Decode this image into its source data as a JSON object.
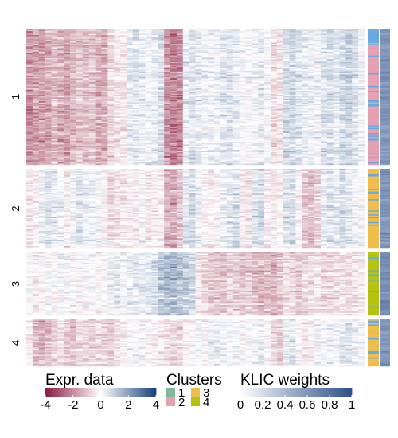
{
  "chart_data": {
    "type": "heatmap",
    "title": "",
    "xlabel": "",
    "ylabel": "",
    "row_groups": [
      {
        "label": "1",
        "cluster": "2",
        "weight": 0.6
      },
      {
        "label": "2",
        "cluster": "3",
        "weight": 0.6
      },
      {
        "label": "3",
        "cluster": "4",
        "weight": 0.65
      },
      {
        "label": "4",
        "cluster": "3",
        "weight": 0.6
      }
    ],
    "heatmap_column_profiles": [
      [
        -1.6,
        -0.4,
        0.0,
        -0.2
      ],
      [
        -1.4,
        -0.2,
        -0.3,
        -1.0
      ],
      [
        -1.5,
        0.3,
        -0.2,
        -1.2
      ],
      [
        -1.3,
        0.5,
        0.1,
        -0.9
      ],
      [
        -1.0,
        0.4,
        -0.1,
        -0.6
      ],
      [
        -1.2,
        0.1,
        0.2,
        -0.4
      ],
      [
        -1.4,
        -0.3,
        0.1,
        -0.8
      ],
      [
        -1.1,
        0.2,
        -0.1,
        -0.9
      ],
      [
        -0.8,
        0.5,
        -0.2,
        -0.5
      ],
      [
        -1.0,
        0.3,
        0.0,
        -0.6
      ],
      [
        -0.9,
        0.2,
        0.1,
        -0.7
      ],
      [
        -1.3,
        0.1,
        -0.2,
        -0.6
      ],
      [
        -1.2,
        -0.2,
        -0.1,
        -0.7
      ],
      [
        -0.6,
        -0.6,
        0.3,
        -0.8
      ],
      [
        -0.4,
        -0.5,
        0.4,
        -0.5
      ],
      [
        -0.3,
        -0.4,
        0.1,
        -0.3
      ],
      [
        0.4,
        -0.2,
        0.3,
        0.1
      ],
      [
        0.5,
        -0.3,
        0.4,
        0.2
      ],
      [
        0.3,
        0.1,
        0.3,
        0.1
      ],
      [
        0.2,
        -0.4,
        0.4,
        -0.1
      ],
      [
        0.3,
        -0.3,
        0.6,
        -0.2
      ],
      [
        0.6,
        -0.2,
        1.1,
        -0.3
      ],
      [
        -1.6,
        -1.2,
        1.2,
        -0.4
      ],
      [
        -1.9,
        -1.3,
        1.3,
        -0.6
      ],
      [
        -1.7,
        -0.9,
        1.0,
        -0.5
      ],
      [
        0.3,
        0.4,
        1.0,
        -0.2
      ],
      [
        0.5,
        0.6,
        0.7,
        0.0
      ],
      [
        0.4,
        0.2,
        -0.3,
        0.2
      ],
      [
        0.2,
        -0.2,
        -0.6,
        0.0
      ],
      [
        0.3,
        -0.3,
        -0.8,
        0.3
      ],
      [
        0.2,
        -0.1,
        -0.9,
        0.4
      ],
      [
        0.4,
        0.3,
        -0.9,
        0.3
      ],
      [
        0.5,
        0.4,
        -0.7,
        0.1
      ],
      [
        0.3,
        0.6,
        -0.8,
        0.2
      ],
      [
        0.1,
        -0.3,
        -0.9,
        -0.1
      ],
      [
        0.0,
        -0.4,
        -0.8,
        0.0
      ],
      [
        0.2,
        0.5,
        -1.0,
        0.2
      ],
      [
        0.4,
        0.7,
        -1.1,
        0.3
      ],
      [
        0.1,
        -0.3,
        -1.0,
        -0.2
      ],
      [
        -0.5,
        -0.4,
        -1.2,
        -0.6
      ],
      [
        -0.4,
        -0.2,
        -0.9,
        -0.8
      ],
      [
        0.6,
        0.5,
        -0.5,
        0.4
      ],
      [
        0.7,
        0.6,
        -0.6,
        0.5
      ],
      [
        0.5,
        -0.2,
        -0.8,
        -0.1
      ],
      [
        0.4,
        -0.9,
        -0.6,
        -0.3
      ],
      [
        0.3,
        -1.0,
        -0.5,
        -0.2
      ],
      [
        0.2,
        -0.7,
        -0.4,
        0.2
      ],
      [
        0.5,
        0.3,
        -0.6,
        0.1
      ],
      [
        0.6,
        0.5,
        -0.6,
        0.3
      ],
      [
        0.4,
        0.4,
        -0.5,
        0.2
      ],
      [
        0.7,
        0.6,
        -0.4,
        0.5
      ],
      [
        0.8,
        0.4,
        -0.5,
        0.6
      ],
      [
        0.5,
        0.2,
        -0.4,
        0.3
      ],
      [
        0.2,
        -0.1,
        -0.3,
        0.1
      ]
    ],
    "legends": {
      "expression": {
        "title": "Expr. data",
        "ticks": [
          "-4",
          "-2",
          "0",
          "2",
          "4"
        ],
        "range": [
          -4,
          4
        ],
        "low_color": "#8b1a3c",
        "mid_color": "#ffffff",
        "high_color": "#163f78"
      },
      "clusters": {
        "title": "Clusters",
        "items": [
          {
            "label": "1",
            "color": "#7fb89a"
          },
          {
            "label": "2",
            "color": "#e5a0b2"
          },
          {
            "label": "3",
            "color": "#efbd4a"
          },
          {
            "label": "4",
            "color": "#b5c20f"
          }
        ]
      },
      "weights": {
        "title": "KLIC weights",
        "ticks": [
          "0",
          "0.2",
          "0.4",
          "0.6",
          "0.8",
          "1"
        ],
        "range": [
          0,
          1
        ],
        "low_color": "#ffffff",
        "high_color": "#2c4f8a"
      }
    },
    "annotation_colors": {
      "light_blue": "#6aa9e0",
      "weight_base": "#7a8db5"
    }
  }
}
